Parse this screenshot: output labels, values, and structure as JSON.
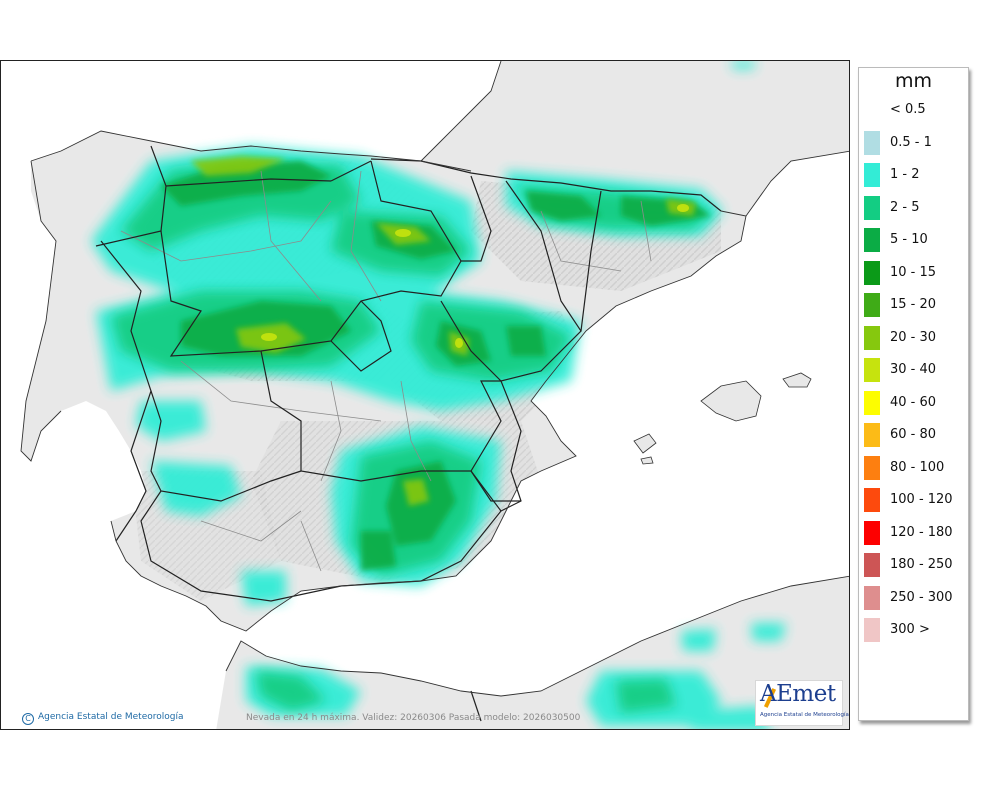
{
  "legend": {
    "unit": "mm",
    "items": [
      {
        "label": "< 0.5",
        "color": "#ffffff"
      },
      {
        "label": "0.5 - 1",
        "color": "#b0dde3"
      },
      {
        "label": "1 - 2",
        "color": "#33ecd6"
      },
      {
        "label": "2 - 5",
        "color": "#13cd83"
      },
      {
        "label": "5 - 10",
        "color": "#0bac45"
      },
      {
        "label": "10 - 15",
        "color": "#0b9a18"
      },
      {
        "label": "15 - 20",
        "color": "#3fab17"
      },
      {
        "label": "20 - 30",
        "color": "#86c80e"
      },
      {
        "label": "30 - 40",
        "color": "#c6e30e"
      },
      {
        "label": "40 - 60",
        "color": "#fdfd00"
      },
      {
        "label": "60 - 80",
        "color": "#fcbb17"
      },
      {
        "label": "80 - 100",
        "color": "#fd7f10"
      },
      {
        "label": "100 - 120",
        "color": "#fd4a0d"
      },
      {
        "label": "120 - 180",
        "color": "#fd0000"
      },
      {
        "label": "180 - 250",
        "color": "#cd5555"
      },
      {
        "label": "250 - 300",
        "color": "#de8e8e"
      },
      {
        "label": "300 >",
        "color": "#f0c6c6"
      }
    ]
  },
  "footer": {
    "credit": "Agencia Estatal de Meteorología",
    "caption": "Nevada en 24 h máxima. Validez: 20260306 Pasada modelo: 2026030500"
  },
  "logo": {
    "wordmark": "AEmet",
    "subtitle": "Agencia Estatal de Meteorología"
  },
  "colors": {
    "sea": "#ffffff",
    "land": "#e8e8e8",
    "relief": "#bdbdbd",
    "border": "#222222",
    "province_border": "#8c8c8c"
  }
}
